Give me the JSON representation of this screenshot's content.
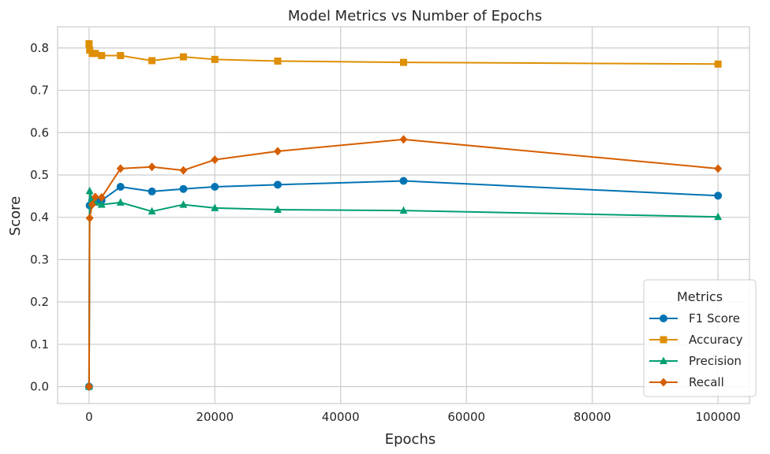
{
  "chart_data": {
    "type": "line",
    "title": "Model Metrics vs Number of Epochs",
    "xlabel": "Epochs",
    "ylabel": "Score",
    "xlim": [
      -5000,
      105000
    ],
    "ylim": [
      -0.04,
      0.85
    ],
    "xticks": [
      0,
      20000,
      40000,
      60000,
      80000,
      100000
    ],
    "yticks": [
      0.0,
      0.1,
      0.2,
      0.3,
      0.4,
      0.5,
      0.6,
      0.7,
      0.8
    ],
    "grid": true,
    "legend": {
      "title": "Metrics",
      "placement": "lower-right"
    },
    "x": [
      1,
      100,
      500,
      1000,
      2000,
      5000,
      10000,
      15000,
      20000,
      30000,
      50000,
      100000
    ],
    "series": [
      {
        "name": "F1 Score",
        "color": "#0173b2",
        "marker": "circle",
        "values": [
          0.0,
          0.428,
          0.44,
          0.44,
          0.44,
          0.472,
          0.461,
          0.467,
          0.472,
          0.477,
          0.486,
          0.451
        ]
      },
      {
        "name": "Accuracy",
        "color": "#de8f05",
        "marker": "square",
        "values": [
          0.81,
          0.795,
          0.787,
          0.787,
          0.782,
          0.782,
          0.77,
          0.779,
          0.773,
          0.769,
          0.766,
          0.762
        ]
      },
      {
        "name": "Precision",
        "color": "#029e73",
        "marker": "triangle",
        "values": [
          0.0,
          0.462,
          0.44,
          0.435,
          0.43,
          0.435,
          0.414,
          0.43,
          0.422,
          0.418,
          0.416,
          0.401
        ]
      },
      {
        "name": "Recall",
        "color": "#d55e00",
        "marker": "diamond",
        "values": [
          0.0,
          0.398,
          0.43,
          0.448,
          0.447,
          0.515,
          0.519,
          0.511,
          0.536,
          0.556,
          0.584,
          0.515
        ]
      }
    ]
  }
}
